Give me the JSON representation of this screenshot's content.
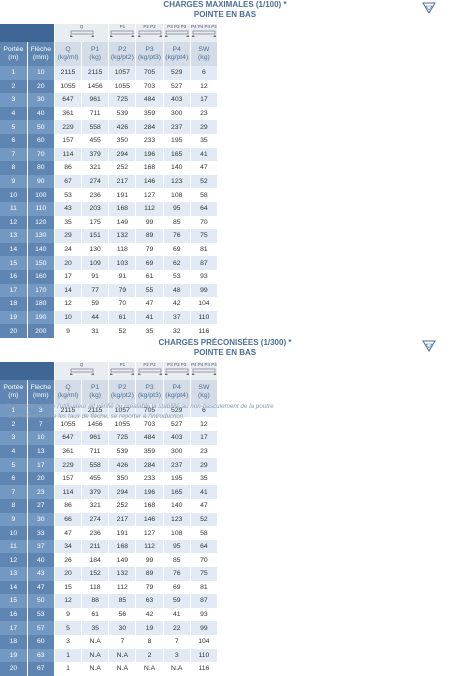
{
  "tables": [
    {
      "title": "CHARGES MAXIMALES (1/100) *",
      "subtitle": "POINTE EN BAS",
      "icons": [
        "Q",
        "P1",
        "P2 P2",
        "P3 P3 P3",
        "P4 P4 P4 P4"
      ],
      "header": [
        {
          "name": "Portée",
          "unit": "(m)"
        },
        {
          "name": "Flèche",
          "unit": "(mm)"
        },
        {
          "name": "Q",
          "unit": "(kg/ml)"
        },
        {
          "name": "P1",
          "unit": "(kg)"
        },
        {
          "name": "P2",
          "unit": "(kg/pt2)"
        },
        {
          "name": "P3",
          "unit": "(kg/pt3)"
        },
        {
          "name": "P4",
          "unit": "(kg/pt4)"
        },
        {
          "name": "SW",
          "unit": "(kg)"
        }
      ],
      "rows": [
        [
          1,
          10,
          2115,
          2115,
          1057,
          705,
          529,
          6
        ],
        [
          2,
          20,
          1055,
          1456,
          1055,
          703,
          527,
          12
        ],
        [
          3,
          30,
          647,
          961,
          725,
          484,
          403,
          17
        ],
        [
          4,
          40,
          361,
          711,
          539,
          359,
          300,
          23
        ],
        [
          5,
          50,
          229,
          558,
          426,
          284,
          237,
          29
        ],
        [
          6,
          60,
          157,
          455,
          350,
          233,
          195,
          35
        ],
        [
          7,
          70,
          114,
          379,
          294,
          196,
          165,
          41
        ],
        [
          8,
          80,
          86,
          321,
          252,
          168,
          140,
          47
        ],
        [
          9,
          90,
          67,
          274,
          217,
          146,
          123,
          52
        ],
        [
          10,
          100,
          53,
          236,
          191,
          127,
          108,
          58
        ],
        [
          11,
          110,
          43,
          203,
          168,
          112,
          95,
          64
        ],
        [
          12,
          120,
          35,
          175,
          149,
          99,
          85,
          70
        ],
        [
          13,
          130,
          29,
          151,
          132,
          89,
          76,
          75
        ],
        [
          14,
          140,
          24,
          130,
          118,
          79,
          69,
          81
        ],
        [
          15,
          150,
          20,
          109,
          103,
          69,
          62,
          87
        ],
        [
          16,
          160,
          17,
          91,
          91,
          61,
          53,
          93
        ],
        [
          17,
          170,
          14,
          77,
          79,
          55,
          48,
          99
        ],
        [
          18,
          180,
          12,
          59,
          70,
          47,
          42,
          104
        ],
        [
          19,
          190,
          10,
          44,
          61,
          41,
          37,
          110
        ],
        [
          20,
          200,
          9,
          31,
          52,
          35,
          32,
          116
        ]
      ]
    },
    {
      "title": "CHARGES PRÉCONISÉES (1/300) *",
      "subtitle": "POINTE EN BAS",
      "icons": [
        "Q",
        "P1",
        "P2 P2",
        "P3 P3 P3",
        "P4 P4 P4 P4"
      ],
      "header": [
        {
          "name": "Portée",
          "unit": "(m)"
        },
        {
          "name": "Flèche",
          "unit": "(mm)"
        },
        {
          "name": "Q",
          "unit": "(kg/ml)"
        },
        {
          "name": "P1",
          "unit": "(kg)"
        },
        {
          "name": "P2",
          "unit": "(kg/pt2)"
        },
        {
          "name": "P3",
          "unit": "(kg/pt3)"
        },
        {
          "name": "P4",
          "unit": "(kg/pt4)"
        },
        {
          "name": "SW",
          "unit": "(kg)"
        }
      ],
      "rows": [
        [
          1,
          3,
          2115,
          2115,
          1057,
          705,
          529,
          6
        ],
        [
          2,
          7,
          1055,
          1456,
          1055,
          703,
          527,
          12
        ],
        [
          3,
          10,
          647,
          961,
          725,
          484,
          403,
          17
        ],
        [
          4,
          13,
          361,
          711,
          539,
          359,
          300,
          23
        ],
        [
          5,
          17,
          229,
          558,
          426,
          284,
          237,
          29
        ],
        [
          6,
          20,
          157,
          455,
          350,
          233,
          195,
          35
        ],
        [
          7,
          23,
          114,
          379,
          294,
          196,
          165,
          41
        ],
        [
          8,
          27,
          86,
          321,
          252,
          168,
          140,
          47
        ],
        [
          9,
          30,
          66,
          274,
          217,
          146,
          123,
          52
        ],
        [
          10,
          33,
          47,
          236,
          191,
          127,
          108,
          58
        ],
        [
          11,
          37,
          34,
          211,
          168,
          112,
          95,
          64
        ],
        [
          12,
          40,
          26,
          184,
          149,
          99,
          85,
          70
        ],
        [
          13,
          43,
          20,
          152,
          132,
          89,
          76,
          75
        ],
        [
          14,
          47,
          15,
          118,
          112,
          79,
          69,
          81
        ],
        [
          15,
          50,
          12,
          88,
          85,
          63,
          59,
          87
        ],
        [
          16,
          53,
          9,
          61,
          56,
          42,
          41,
          93
        ],
        [
          17,
          57,
          5,
          35,
          30,
          19,
          22,
          99
        ],
        [
          18,
          60,
          3,
          "N.A",
          7,
          8,
          7,
          104
        ],
        [
          19,
          63,
          1,
          "N.A",
          "N.A",
          2,
          3,
          110
        ],
        [
          20,
          67,
          1,
          "N.A",
          "N.A",
          "N.A",
          "N.A",
          116
        ]
      ]
    }
  ],
  "footnotes": [
    "Sous réserve que l'utilisateur ait vérifié ou préalable la stabilité au non-basculement de la poutre",
    "*Bien comprendre les taux de flèche, se reporter à l'introduction"
  ]
}
